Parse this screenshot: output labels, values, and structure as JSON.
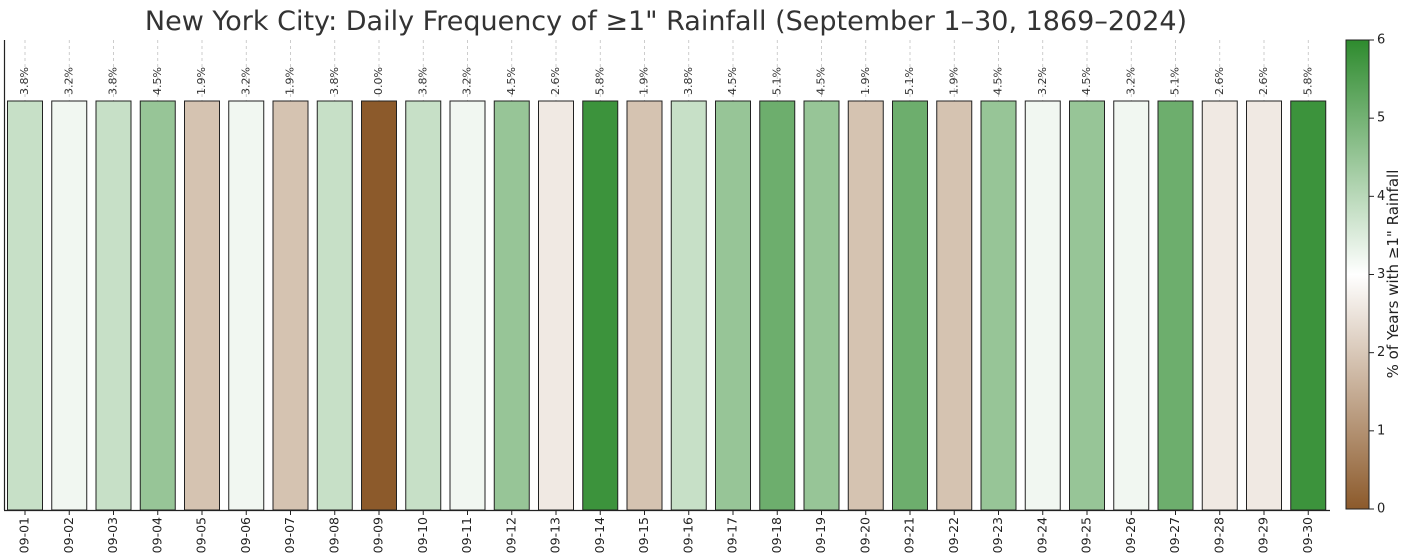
{
  "chart_data": {
    "type": "bar",
    "title": "New York City: Daily Frequency of ≥1\" Rainfall (September 1–30, 1869–2024)",
    "xlabel": "",
    "ylabel": "",
    "categories": [
      "09-01",
      "09-02",
      "09-03",
      "09-04",
      "09-05",
      "09-06",
      "09-07",
      "09-08",
      "09-09",
      "09-10",
      "09-11",
      "09-12",
      "09-13",
      "09-14",
      "09-15",
      "09-16",
      "09-17",
      "09-18",
      "09-19",
      "09-20",
      "09-21",
      "09-22",
      "09-23",
      "09-24",
      "09-25",
      "09-26",
      "09-27",
      "09-28",
      "09-29",
      "09-30"
    ],
    "values": [
      3.8,
      3.2,
      3.8,
      4.5,
      1.9,
      3.2,
      1.9,
      3.8,
      0.0,
      3.8,
      3.2,
      4.5,
      2.6,
      5.8,
      1.9,
      3.8,
      4.5,
      5.1,
      4.5,
      1.9,
      5.1,
      1.9,
      4.5,
      3.2,
      4.5,
      3.2,
      5.1,
      2.6,
      2.6,
      5.8
    ],
    "data_labels": [
      "3.8%",
      "3.2%",
      "3.8%",
      "4.5%",
      "1.9%",
      "3.2%",
      "1.9%",
      "3.8%",
      "0.0%",
      "3.8%",
      "3.2%",
      "4.5%",
      "2.6%",
      "5.8%",
      "1.9%",
      "3.8%",
      "4.5%",
      "5.1%",
      "4.5%",
      "1.9%",
      "5.1%",
      "1.9%",
      "4.5%",
      "3.2%",
      "4.5%",
      "3.2%",
      "5.1%",
      "2.6%",
      "2.6%",
      "5.8%"
    ],
    "bar_height_fill": "uniform",
    "grid": "vertical dashed",
    "colorbar": {
      "label": "% of Years with ≥1\" Rainfall",
      "range": [
        0,
        6
      ],
      "ticks": [
        "0",
        "1",
        "2",
        "3",
        "4",
        "5",
        "6"
      ],
      "colors": [
        "#8c5a2b",
        "#ffffff",
        "#2e8b2e"
      ]
    }
  }
}
